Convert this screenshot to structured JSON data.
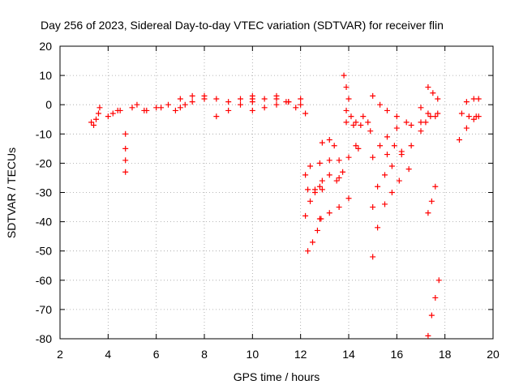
{
  "chart_data": {
    "type": "scatter",
    "title": "Day 256 of 2023, Sidereal Day-to-day VTEC variation (SDTVAR) for receiver flin",
    "xlabel": "GPS time / hours",
    "ylabel": "SDTVAR / TECUs",
    "xlim": [
      2,
      20
    ],
    "ylim": [
      -80,
      20
    ],
    "xticks": [
      2,
      4,
      6,
      8,
      10,
      12,
      14,
      16,
      18,
      20
    ],
    "yticks": [
      -80,
      -70,
      -60,
      -50,
      -40,
      -30,
      -20,
      -10,
      0,
      10,
      20
    ],
    "grid": true,
    "legend": "none",
    "marker": "plus",
    "color": "#ff0000",
    "series": [
      {
        "x": [
          3.3,
          3.4,
          3.5,
          3.6,
          3.65
        ],
        "y": [
          -6,
          -7,
          -5,
          -3,
          -1
        ]
      },
      {
        "x": [
          4.0,
          4.2,
          4.4,
          4.5
        ],
        "y": [
          -4,
          -3,
          -2,
          -2
        ]
      },
      {
        "x": [
          4.72,
          4.72,
          4.72,
          4.72
        ],
        "y": [
          -10,
          -15,
          -19,
          -23
        ]
      },
      {
        "x": [
          5.0,
          5.5,
          6.0,
          6.5,
          7.0,
          7.5,
          8.0
        ],
        "y": [
          -1,
          -2,
          -1,
          0,
          -1,
          1,
          2
        ]
      },
      {
        "x": [
          5.2,
          5.6,
          6.2,
          6.8,
          7.2
        ],
        "y": [
          0,
          -2,
          -1,
          -2,
          0
        ]
      },
      {
        "x": [
          7.0,
          7.5,
          8.0,
          8.5,
          9.0,
          9.5,
          10.0
        ],
        "y": [
          2,
          3,
          3,
          2,
          1,
          2,
          3
        ]
      },
      {
        "x": [
          8.5,
          9.0,
          9.5,
          10.0
        ],
        "y": [
          -4,
          -2,
          0,
          1
        ]
      },
      {
        "x": [
          10.0,
          10.5,
          11.0,
          11.5,
          12.0
        ],
        "y": [
          2,
          2,
          2,
          1,
          2
        ]
      },
      {
        "x": [
          10.0,
          10.5,
          11.0,
          11.5,
          12.0
        ],
        "y": [
          -2,
          -1,
          0,
          1,
          0
        ]
      },
      {
        "x": [
          11.0,
          11.4,
          11.8,
          12.2
        ],
        "y": [
          3,
          1,
          -1,
          -3
        ]
      },
      {
        "x": [
          12.2,
          12.4,
          12.8,
          13.2,
          13.6,
          14.0
        ],
        "y": [
          -24,
          -21,
          -20,
          -19,
          -19,
          -18
        ]
      },
      {
        "x": [
          12.2,
          12.4,
          12.6,
          12.8
        ],
        "y": [
          -38,
          -33,
          -30,
          -28
        ]
      },
      {
        "x": [
          12.3,
          12.5,
          12.7,
          12.85
        ],
        "y": [
          -50,
          -47,
          -43,
          -39
        ]
      },
      {
        "x": [
          12.3,
          12.6,
          12.9
        ],
        "y": [
          -29,
          -29,
          -29
        ]
      },
      {
        "x": [
          12.8,
          13.2,
          13.6,
          14.0
        ],
        "y": [
          -39,
          -37,
          -35,
          -32
        ]
      },
      {
        "x": [
          12.9,
          13.2,
          13.5
        ],
        "y": [
          -26,
          -24,
          -26
        ]
      },
      {
        "x": [
          12.9,
          13.2,
          13.4
        ],
        "y": [
          -13,
          -12,
          -14
        ]
      },
      {
        "x": [
          13.6,
          13.75
        ],
        "y": [
          -25,
          -23
        ]
      },
      {
        "x": [
          13.8,
          13.9,
          14.0
        ],
        "y": [
          10,
          6,
          2
        ]
      },
      {
        "x": [
          13.9,
          14.1,
          14.3
        ],
        "y": [
          -2,
          -4,
          -6
        ]
      },
      {
        "x": [
          13.9,
          14.2,
          14.5
        ],
        "y": [
          -6,
          -7,
          -7
        ]
      },
      {
        "x": [
          14.3,
          14.4
        ],
        "y": [
          -14,
          -15
        ]
      },
      {
        "x": [
          14.6,
          14.8,
          14.9
        ],
        "y": [
          -4,
          -6,
          -9
        ]
      },
      {
        "x": [
          15.0,
          15.3,
          15.6,
          16.0
        ],
        "y": [
          3,
          0,
          -2,
          -4
        ]
      },
      {
        "x": [
          15.0,
          15.3,
          15.6,
          16.0,
          16.4
        ],
        "y": [
          -18,
          -14,
          -11,
          -8,
          -6
        ]
      },
      {
        "x": [
          15.0,
          15.2,
          15.5,
          15.8,
          16.2,
          16.6
        ],
        "y": [
          -35,
          -28,
          -24,
          -21,
          -17,
          -14
        ]
      },
      {
        "x": [
          15.0,
          15.2,
          15.5,
          15.8,
          16.1,
          16.5
        ],
        "y": [
          -52,
          -42,
          -34,
          -30,
          -26,
          -22
        ]
      },
      {
        "x": [
          15.6,
          15.9,
          16.2
        ],
        "y": [
          -17,
          -14,
          -16
        ]
      },
      {
        "x": [
          16.6,
          17.0,
          17.4,
          17.7
        ],
        "y": [
          -7,
          -6,
          -4,
          -3
        ]
      },
      {
        "x": [
          17.0,
          17.3,
          17.6
        ],
        "y": [
          -1,
          -3,
          -4
        ]
      },
      {
        "x": [
          17.0,
          17.2
        ],
        "y": [
          -9,
          -6
        ]
      },
      {
        "x": [
          17.3,
          17.5,
          17.7
        ],
        "y": [
          6,
          4,
          2
        ]
      },
      {
        "x": [
          17.3,
          17.45,
          17.6
        ],
        "y": [
          -37,
          -33,
          -28
        ]
      },
      {
        "x": [
          17.3,
          17.45,
          17.6,
          17.75
        ],
        "y": [
          -79,
          -72,
          -66,
          -60
        ]
      },
      {
        "x": [
          18.6,
          18.9,
          19.2,
          19.4
        ],
        "y": [
          -12,
          -8,
          -5,
          -4
        ]
      },
      {
        "x": [
          18.7,
          19.0,
          19.3
        ],
        "y": [
          -3,
          -4,
          -4
        ]
      },
      {
        "x": [
          18.9,
          19.2,
          19.4
        ],
        "y": [
          1,
          2,
          2
        ]
      }
    ]
  }
}
